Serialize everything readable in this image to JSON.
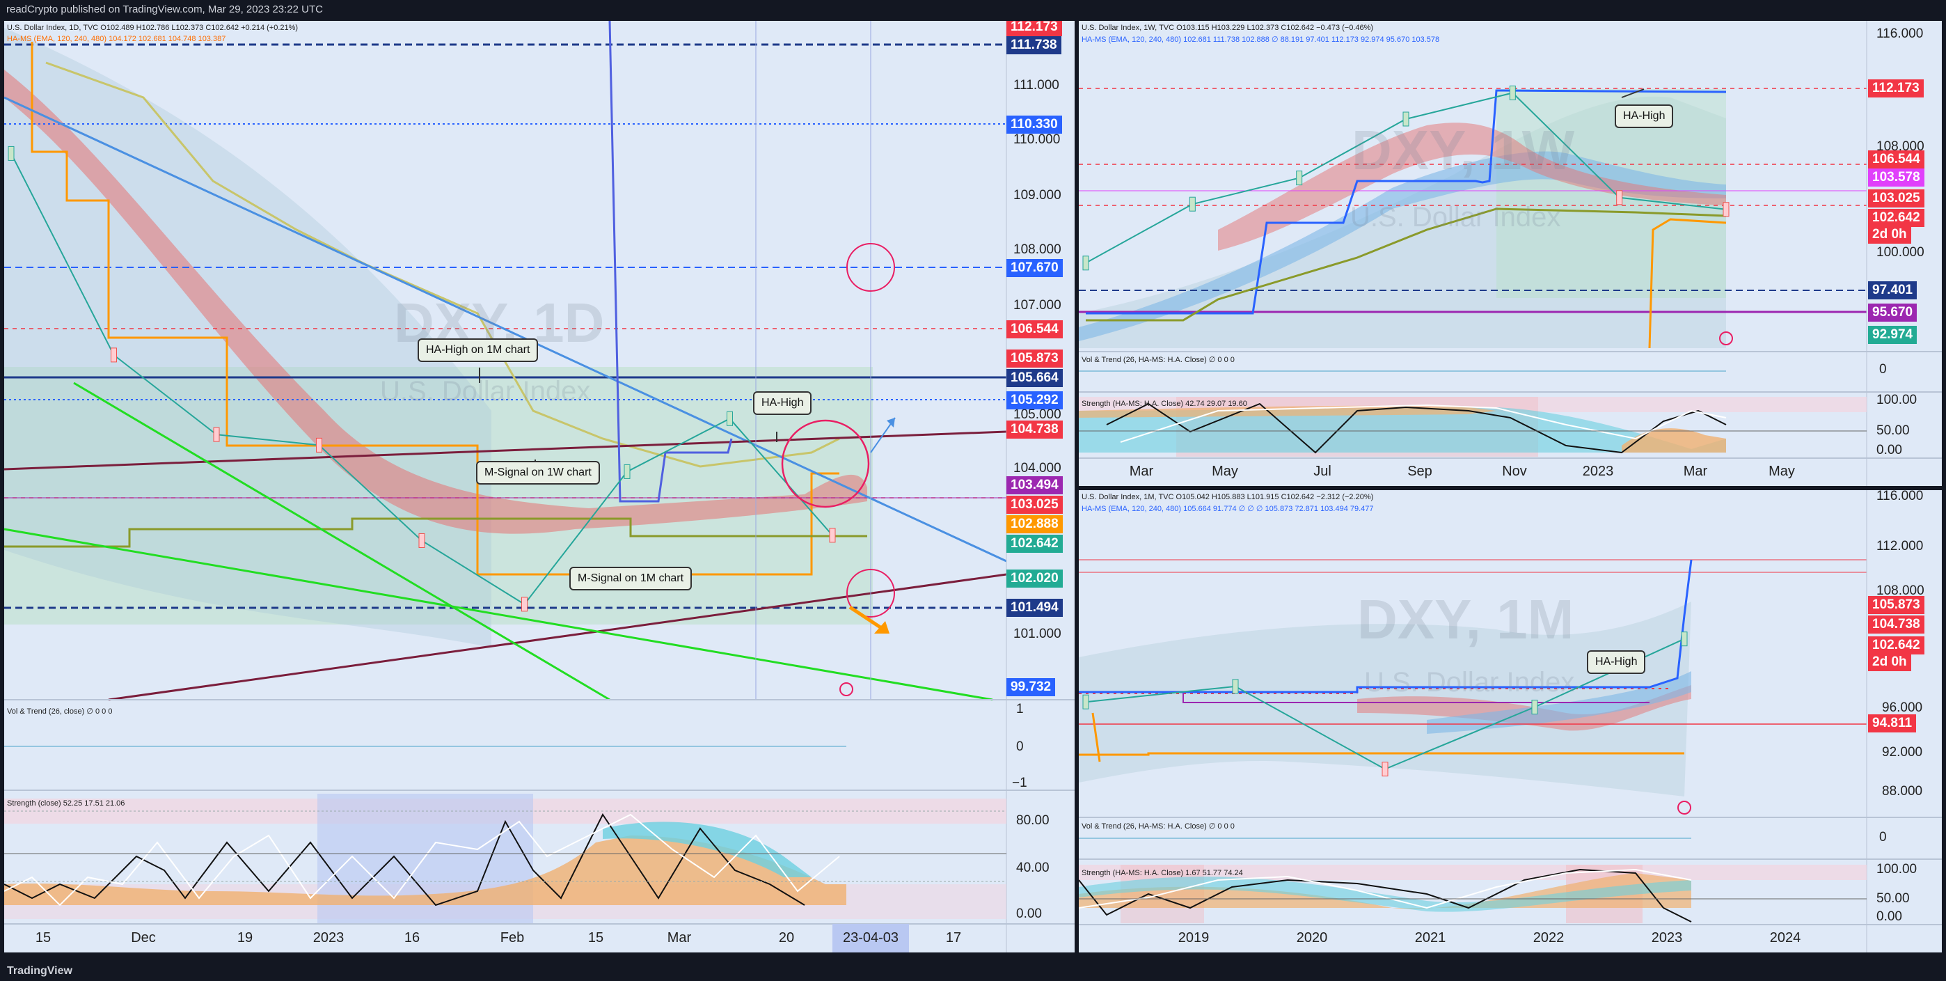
{
  "header": {
    "publisher": "readCrypto published on TradingView.com, Mar 29, 2023 23:22 UTC"
  },
  "footer": {
    "brand": "TradingView"
  },
  "colors": {
    "bg": "#dfe9f7",
    "badge_red": "#f23645",
    "badge_blue": "#2962ff",
    "badge_navy": "#1e3a8a",
    "badge_green": "#22ab94",
    "badge_orange": "#ff9800",
    "badge_magenta": "#e040fb",
    "badge_purple": "#9c27b0"
  },
  "left": {
    "legend1": "U.S. Dollar Index, 1D, TVC  O102.489  H102.786  L102.373  C102.642  +0.214 (+0.21%)",
    "legend2": "HA-MS (EMA, 120, 240, 480)  104.172  102.681  104.748  103.387",
    "watermark_big": "DXY, 1D",
    "watermark_small": "U.S. Dollar Index",
    "notes": [
      "HA-High on 1M chart",
      "HA-High",
      "M-Signal on 1W chart",
      "M-Signal on 1M chart"
    ],
    "price_ticks": [
      "111.000",
      "110.000",
      "109.000",
      "108.000",
      "107.000",
      "105.000",
      "104.000",
      "101.000"
    ],
    "badges": [
      {
        "text": "112.173",
        "color": "#f23645"
      },
      {
        "text": "111.738",
        "color": "#1e3a8a"
      },
      {
        "text": "110.330",
        "color": "#2962ff"
      },
      {
        "text": "107.670",
        "color": "#2962ff"
      },
      {
        "text": "106.544",
        "color": "#f23645"
      },
      {
        "text": "105.873",
        "color": "#f23645"
      },
      {
        "text": "105.664",
        "color": "#1e3a8a"
      },
      {
        "text": "105.292",
        "color": "#2962ff"
      },
      {
        "text": "104.738",
        "color": "#f23645"
      },
      {
        "text": "103.494",
        "color": "#9c27b0"
      },
      {
        "text": "103.025",
        "color": "#f23645"
      },
      {
        "text": "102.888",
        "color": "#ff9800"
      },
      {
        "text": "102.642",
        "color": "#22ab94"
      },
      {
        "text": "102.020",
        "color": "#22ab94"
      },
      {
        "text": "101.494",
        "color": "#1e3a8a"
      },
      {
        "text": "99.732",
        "color": "#2962ff"
      }
    ],
    "vol_label": "Vol & Trend (26, close)  ∅  0  0  0",
    "vol_ticks": [
      "1",
      "0",
      "−1"
    ],
    "strength_label": "Strength (close)  52.25  17.51  21.06",
    "strength_ticks": [
      "80.00",
      "40.00",
      "0.00"
    ],
    "x_labels": [
      "15",
      "Dec",
      "19",
      "2023",
      "16",
      "Feb",
      "15",
      "Mar",
      "20",
      "23-04-03",
      "17"
    ]
  },
  "weekly": {
    "legend1": "U.S. Dollar Index, 1W, TVC  O103.115  H103.229  L102.373  C102.642  −0.473 (−0.46%)",
    "legend2": "HA-MS (EMA, 120, 240, 480)  102.681  111.738  102.888  ∅  88.191  97.401  112.173  92.974  95.670  103.578",
    "watermark_big": "DXY, 1W",
    "watermark_small": "U.S. Dollar Index",
    "note": "HA-High",
    "price_ticks": [
      "116.000",
      "108.000",
      "100.000"
    ],
    "badges": [
      {
        "text": "112.173",
        "color": "#f23645"
      },
      {
        "text": "106.544",
        "color": "#f23645"
      },
      {
        "text": "103.578",
        "color": "#e040fb"
      },
      {
        "text": "103.025",
        "color": "#f23645"
      },
      {
        "text": "102.642",
        "color": "#f23645"
      },
      {
        "text": "2d 0h",
        "color": "#f23645"
      },
      {
        "text": "97.401",
        "color": "#1e3a8a"
      },
      {
        "text": "95.670",
        "color": "#9c27b0"
      },
      {
        "text": "92.974",
        "color": "#22ab94"
      }
    ],
    "vol_label": "Vol & Trend (26, HA-MS: H.A. Close)  ∅  0  0  0",
    "vol_tick": "0",
    "strength_label": "Strength (HA-MS: H.A. Close)  42.74  29.07  19.60",
    "strength_ticks": [
      "100.00",
      "50.00",
      "0.00"
    ],
    "x_labels": [
      "Mar",
      "May",
      "Jul",
      "Sep",
      "Nov",
      "2023",
      "Mar",
      "May"
    ]
  },
  "monthly": {
    "legend1": "U.S. Dollar Index, 1M, TVC  O105.042  H105.883  L101.915  C102.642  −2.312 (−2.20%)",
    "legend2": "HA-MS (EMA, 120, 240, 480)  105.664  91.774  ∅  ∅  ∅  105.873  72.871  103.494  79.477",
    "watermark_big": "DXY, 1M",
    "watermark_small": "U.S. Dollar Index",
    "note": "HA-High",
    "price_ticks": [
      "116.000",
      "112.000",
      "108.000",
      "96.000",
      "92.000",
      "88.000"
    ],
    "badges": [
      {
        "text": "105.873",
        "color": "#f23645"
      },
      {
        "text": "104.738",
        "color": "#f23645"
      },
      {
        "text": "102.642",
        "color": "#f23645"
      },
      {
        "text": "2d 0h",
        "color": "#f23645"
      },
      {
        "text": "94.811",
        "color": "#f23645"
      }
    ],
    "vol_label": "Vol & Trend (26, HA-MS: H.A. Close)  ∅  0  0  0",
    "vol_tick": "0",
    "strength_label": "Strength (HA-MS: H.A. Close)  1.67  51.77  74.24",
    "strength_ticks": [
      "100.00",
      "50.00",
      "0.00"
    ],
    "x_labels": [
      "2019",
      "2020",
      "2021",
      "2022",
      "2023",
      "2024"
    ]
  },
  "chart_data": [
    {
      "type": "line",
      "title": "DXY, 1D",
      "xlabel": "",
      "ylabel": "",
      "x": [
        "15",
        "Dec",
        "19",
        "2023",
        "16",
        "Feb",
        "15",
        "Mar",
        "20"
      ],
      "series": [
        {
          "values": [
            109.8,
            106.0,
            104.5,
            104.3,
            102.5,
            101.3,
            103.8,
            104.8,
            102.6
          ]
        }
      ],
      "ylim": [
        99.5,
        112.3
      ],
      "last": 102.642
    },
    {
      "type": "line",
      "title": "DXY, 1W",
      "xlabel": "",
      "ylabel": "",
      "x": [
        "Mar",
        "May",
        "Jul",
        "Sep",
        "Nov",
        "2023",
        "Mar"
      ],
      "series": [
        {
          "values": [
            98.5,
            103.0,
            105.0,
            109.5,
            111.5,
            103.5,
            102.6
          ]
        }
      ],
      "ylim": [
        92.0,
        117.0
      ],
      "last": 102.642
    },
    {
      "type": "line",
      "title": "DXY, 1M",
      "xlabel": "",
      "ylabel": "",
      "x": [
        "2019",
        "2020",
        "2021",
        "2022",
        "2023"
      ],
      "series": [
        {
          "values": [
            96.5,
            98.0,
            90.0,
            96.0,
            102.6
          ]
        }
      ],
      "ylim": [
        86.0,
        117.0
      ],
      "last": 102.642
    }
  ]
}
